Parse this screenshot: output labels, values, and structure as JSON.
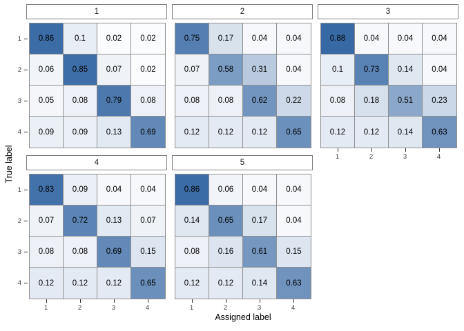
{
  "chart_data": {
    "type": "heatmap",
    "title": "",
    "description": "Faceted confusion matrices (true label vs assigned label), 5 facets",
    "xlabel": "Assigned label",
    "ylabel": "True label",
    "x_ticks": [
      "1",
      "2",
      "3",
      "4"
    ],
    "y_ticks": [
      "1",
      "2",
      "3",
      "4"
    ],
    "value_range": [
      0,
      1
    ],
    "grid": "off",
    "legend": "none",
    "facets": [
      {
        "label": "1",
        "matrix": [
          [
            0.86,
            0.1,
            0.02,
            0.02
          ],
          [
            0.06,
            0.85,
            0.07,
            0.02
          ],
          [
            0.05,
            0.08,
            0.79,
            0.08
          ],
          [
            0.09,
            0.09,
            0.13,
            0.69
          ]
        ]
      },
      {
        "label": "2",
        "matrix": [
          [
            0.75,
            0.17,
            0.04,
            0.04
          ],
          [
            0.07,
            0.58,
            0.31,
            0.04
          ],
          [
            0.08,
            0.08,
            0.62,
            0.22
          ],
          [
            0.12,
            0.12,
            0.12,
            0.65
          ]
        ]
      },
      {
        "label": "3",
        "matrix": [
          [
            0.88,
            0.04,
            0.04,
            0.04
          ],
          [
            0.1,
            0.73,
            0.14,
            0.04
          ],
          [
            0.08,
            0.18,
            0.51,
            0.23
          ],
          [
            0.12,
            0.12,
            0.14,
            0.63
          ]
        ]
      },
      {
        "label": "4",
        "matrix": [
          [
            0.83,
            0.09,
            0.04,
            0.04
          ],
          [
            0.07,
            0.72,
            0.13,
            0.07
          ],
          [
            0.08,
            0.08,
            0.69,
            0.15
          ],
          [
            0.12,
            0.12,
            0.12,
            0.65
          ]
        ]
      },
      {
        "label": "5",
        "matrix": [
          [
            0.86,
            0.06,
            0.04,
            0.04
          ],
          [
            0.14,
            0.65,
            0.17,
            0.04
          ],
          [
            0.08,
            0.16,
            0.61,
            0.15
          ],
          [
            0.12,
            0.12,
            0.14,
            0.63
          ]
        ]
      }
    ],
    "colors": {
      "low": "#ffffff",
      "high": "#1c5498",
      "cell_border": "#8e8e8e",
      "strip_border": "#7f7f7f",
      "tick": "#333333",
      "tick_label": "#3a3a3a",
      "cell_text": "#000000"
    }
  }
}
